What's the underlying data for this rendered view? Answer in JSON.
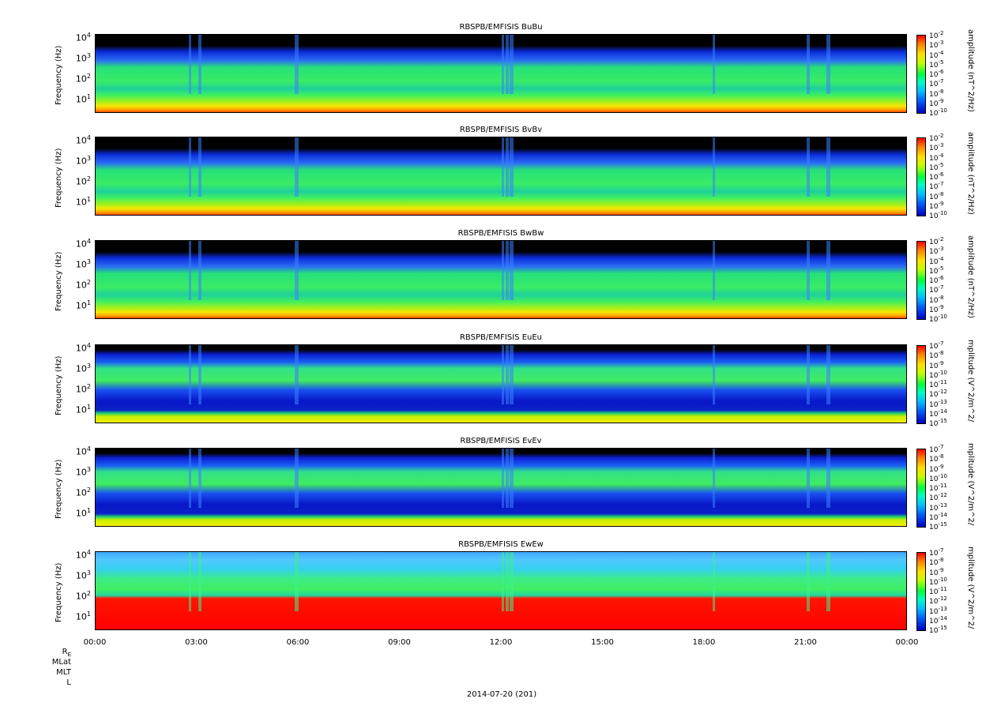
{
  "chart_data": [
    {
      "type": "heatmap",
      "title": "RBSPB/EMFISIS  BuBu",
      "ylabel": "Frequency (Hz)",
      "colorbar_label": "amplitude (nT^2/Hz)",
      "ylim": [
        2,
        12000
      ],
      "yscale": "log",
      "colorbar_ticks": [
        "-2",
        "-3",
        "-4",
        "-5",
        "-6",
        "-7",
        "-8",
        "-9",
        "-10"
      ]
    },
    {
      "type": "heatmap",
      "title": "RBSPB/EMFISIS  BvBv",
      "ylabel": "Frequency (Hz)",
      "colorbar_label": "amplitude (nT^2/Hz)",
      "ylim": [
        2,
        12000
      ],
      "yscale": "log",
      "colorbar_ticks": [
        "-2",
        "-3",
        "-4",
        "-5",
        "-6",
        "-7",
        "-8",
        "-9",
        "-10"
      ]
    },
    {
      "type": "heatmap",
      "title": "RBSPB/EMFISIS  BwBw",
      "ylabel": "Frequency (Hz)",
      "colorbar_label": "amplitude (nT^2/Hz)",
      "ylim": [
        2,
        12000
      ],
      "yscale": "log",
      "colorbar_ticks": [
        "-2",
        "-3",
        "-4",
        "-5",
        "-6",
        "-7",
        "-8",
        "-9",
        "-10"
      ]
    },
    {
      "type": "heatmap",
      "title": "RBSPB/EMFISIS  EuEu",
      "ylabel": "Frequency (Hz)",
      "colorbar_label": "mplitude (V^2/m^2/",
      "ylim": [
        2,
        12000
      ],
      "yscale": "log",
      "colorbar_ticks": [
        "-7",
        "-8",
        "-9",
        "-10",
        "-11",
        "-12",
        "-13",
        "-14",
        "-15"
      ]
    },
    {
      "type": "heatmap",
      "title": "RBSPB/EMFISIS  EvEv",
      "ylabel": "Frequency (Hz)",
      "colorbar_label": "mplitude (V^2/m^2/",
      "ylim": [
        2,
        12000
      ],
      "yscale": "log",
      "colorbar_ticks": [
        "-7",
        "-8",
        "-9",
        "-10",
        "-11",
        "-12",
        "-13",
        "-14",
        "-15"
      ]
    },
    {
      "type": "heatmap",
      "title": "RBSPB/EMFISIS  EwEw",
      "ylabel": "Frequency (Hz)",
      "colorbar_label": "mplitude (V^2/m^2/",
      "ylim": [
        2,
        12000
      ],
      "yscale": "log",
      "colorbar_ticks": [
        "-7",
        "-8",
        "-9",
        "-10",
        "-11",
        "-12",
        "-13",
        "-14",
        "-15"
      ]
    }
  ],
  "x_ticks": [
    "00:00",
    "03:00",
    "06:00",
    "09:00",
    "12:00",
    "15:00",
    "18:00",
    "21:00",
    "00:00"
  ],
  "y_tick_exponents": [
    "4",
    "3",
    "2",
    "1"
  ],
  "y_tick_base": "10",
  "ephemeris_labels": [
    "R",
    "MLat",
    "MLT",
    "L"
  ],
  "ephemeris_subscript": "E",
  "date_label": "2014-07-20 (201)"
}
